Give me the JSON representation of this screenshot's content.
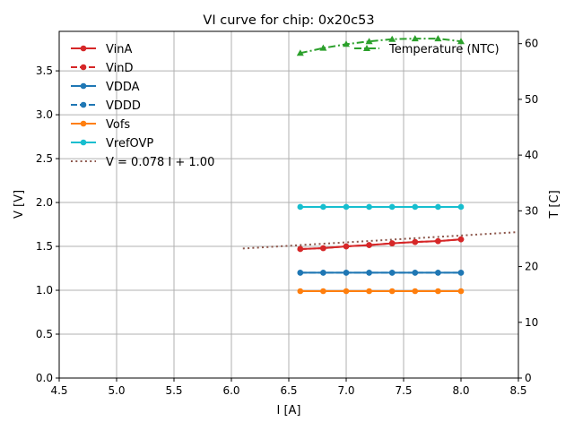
{
  "chart_data": {
    "type": "line",
    "title": "VI curve for chip: 0x20c53",
    "xlabel": "I [A]",
    "ylabel": "V [V]",
    "y2label": "T [C]",
    "xlim": [
      4.5,
      8.5
    ],
    "ylim": [
      0,
      3.95
    ],
    "y2lim": [
      0,
      62.2
    ],
    "grid": true,
    "xticks": [
      "4.5",
      "5.0",
      "5.5",
      "6.0",
      "6.5",
      "7.0",
      "7.5",
      "8.0",
      "8.5"
    ],
    "yticks": [
      "0.0",
      "0.5",
      "1.0",
      "1.5",
      "2.0",
      "2.5",
      "3.0",
      "3.5"
    ],
    "y2ticks": [
      "0",
      "10",
      "20",
      "30",
      "40",
      "50",
      "60"
    ],
    "x": [
      6.6,
      6.8,
      7.0,
      7.2,
      7.4,
      7.6,
      7.8,
      8.0
    ],
    "series": [
      {
        "name": "VinA",
        "color": "#d62728",
        "dash": "solid",
        "values": [
          1.47,
          1.48,
          1.5,
          1.515,
          1.535,
          1.55,
          1.56,
          1.58
        ]
      },
      {
        "name": "VinD",
        "color": "#d62728",
        "dash": "dashed",
        "values": [
          1.47,
          1.48,
          1.5,
          1.515,
          1.535,
          1.55,
          1.56,
          1.58
        ]
      },
      {
        "name": "VDDA",
        "color": "#1f77b4",
        "dash": "solid",
        "values": [
          1.2,
          1.2,
          1.2,
          1.2,
          1.2,
          1.2,
          1.2,
          1.2
        ]
      },
      {
        "name": "VDDD",
        "color": "#1f77b4",
        "dash": "dashed",
        "values": [
          1.2,
          1.2,
          1.2,
          1.2,
          1.2,
          1.2,
          1.2,
          1.2
        ]
      },
      {
        "name": "Vofs",
        "color": "#ff7f0e",
        "dash": "solid",
        "values": [
          0.99,
          0.99,
          0.99,
          0.99,
          0.99,
          0.99,
          0.99,
          0.99
        ]
      },
      {
        "name": "VrefOVP",
        "color": "#17becf",
        "dash": "solid",
        "values": [
          1.95,
          1.95,
          1.95,
          1.95,
          1.95,
          1.95,
          1.95,
          1.95
        ]
      }
    ],
    "fit": {
      "name": "V = 0.078 I + 1.00",
      "color": "#8c564b",
      "slope": 0.078,
      "intercept": 1.0,
      "x_range": [
        6.1,
        8.5
      ]
    },
    "temperature": {
      "name": "Temperature (NTC)",
      "color": "#2ca02c",
      "values": [
        58.3,
        59.2,
        59.9,
        60.4,
        60.8,
        60.9,
        60.9,
        60.4
      ]
    },
    "legend_left": "upper-left",
    "legend_right": "upper-right"
  }
}
